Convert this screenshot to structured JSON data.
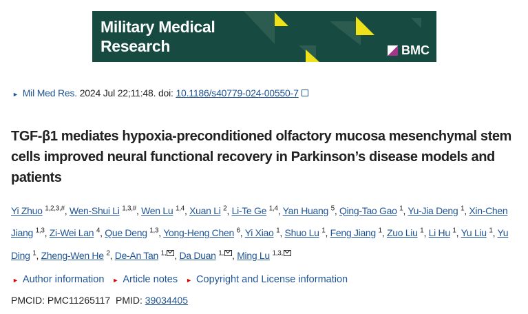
{
  "banner": {
    "journal_line1": "Military Medical",
    "journal_line2": "Research",
    "publisher": "BMC",
    "bg_color": "#174a40",
    "accent_color": "#f0e21a"
  },
  "citation": {
    "journal": "Mil Med Res.",
    "details": " 2024 Jul 22;11:48. doi: ",
    "doi": "10.1186/s40779-024-00550-7",
    "icon": "external-link-icon"
  },
  "title": "TGF-β1 mediates hypoxia-preconditioned olfactory mucosa mesenchymal stem cells improved neural functional recovery in Parkinson’s disease models and patients",
  "authors": [
    {
      "name": "Yi Zhuo",
      "sup": "1,2,3,#"
    },
    {
      "name": "Wen-Shui Li",
      "sup": "1,3,#"
    },
    {
      "name": "Wen Lu",
      "sup": "1,4"
    },
    {
      "name": "Xuan Li",
      "sup": "2"
    },
    {
      "name": "Li-Te Ge",
      "sup": "1,4"
    },
    {
      "name": "Yan Huang",
      "sup": "5"
    },
    {
      "name": "Qing-Tao Gao",
      "sup": "1"
    },
    {
      "name": "Yu-Jia Deng",
      "sup": "1"
    },
    {
      "name": "Xin-Chen Jiang",
      "sup": "1,3"
    },
    {
      "name": "Zi-Wei Lan",
      "sup": "4"
    },
    {
      "name": "Que Deng",
      "sup": "1,3"
    },
    {
      "name": "Yong-Heng Chen",
      "sup": "6"
    },
    {
      "name": "Yi Xiao",
      "sup": "1"
    },
    {
      "name": "Shuo Lu",
      "sup": "1"
    },
    {
      "name": "Feng Jiang",
      "sup": "1"
    },
    {
      "name": "Zuo Liu",
      "sup": "1"
    },
    {
      "name": "Li Hu",
      "sup": "1"
    },
    {
      "name": "Yu Liu",
      "sup": "1"
    },
    {
      "name": "Yu Ding",
      "sup": "1"
    },
    {
      "name": "Zheng-Wen He",
      "sup": "2"
    },
    {
      "name": "De-An Tan",
      "sup": "1,",
      "mail": true
    },
    {
      "name": "Da Duan",
      "sup": "1,",
      "mail": true
    },
    {
      "name": "Ming Lu",
      "sup": "1,3,",
      "mail": true
    }
  ],
  "expanders": [
    "Author information",
    "Article notes",
    "Copyright and License information"
  ],
  "ids": {
    "pmcid_label": "PMCID: ",
    "pmcid": "PMC11265117",
    "pmid_label": "PMID: ",
    "pmid": "39034405"
  }
}
